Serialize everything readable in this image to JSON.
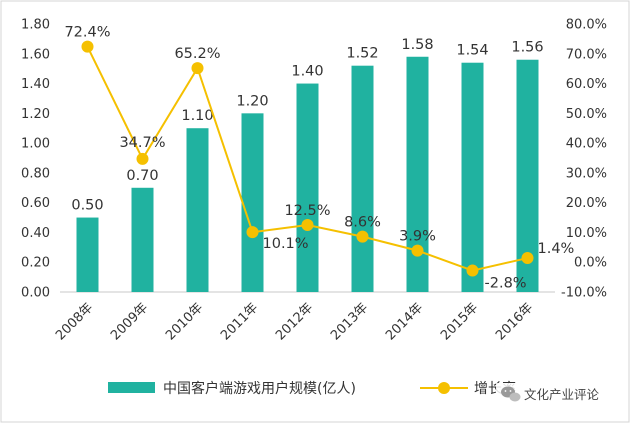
{
  "chart_data": {
    "type": "bar",
    "title": "",
    "xlabel": "",
    "ylabel": "",
    "categories": [
      "2008年",
      "2009年",
      "2010年",
      "2011年",
      "2012年",
      "2013年",
      "2014年",
      "2015年",
      "2016年"
    ],
    "series": [
      {
        "name": "中国客户端游戏用户规模(亿人)",
        "kind": "bar",
        "axis": "left",
        "values": [
          0.5,
          0.7,
          1.1,
          1.2,
          1.4,
          1.52,
          1.58,
          1.54,
          1.56
        ],
        "labels": [
          "0.50",
          "0.70",
          "1.10",
          "1.20",
          "1.40",
          "1.52",
          "1.58",
          "1.54",
          "1.56"
        ],
        "color": "#20b2a0"
      },
      {
        "name": "增长率",
        "kind": "line",
        "axis": "right",
        "values": [
          72.4,
          34.7,
          65.2,
          10.1,
          12.5,
          8.6,
          3.9,
          -2.8,
          1.4
        ],
        "labels": [
          "72.4%",
          "34.7%",
          "65.2%",
          "10.1%",
          "12.5%",
          "8.6%",
          "3.9%",
          "-2.8%",
          "1.4%"
        ],
        "color": "#f5c000"
      }
    ],
    "y_left": {
      "ylim": [
        0,
        1.8
      ],
      "ticks": [
        0,
        0.2,
        0.4,
        0.6,
        0.8,
        1.0,
        1.2,
        1.4,
        1.6,
        1.8
      ],
      "tick_labels": [
        "0.00",
        "0.20",
        "0.40",
        "0.60",
        "0.80",
        "1.00",
        "1.20",
        "1.40",
        "1.60",
        "1.80"
      ]
    },
    "y_right": {
      "ylim": [
        -10,
        80
      ],
      "ticks": [
        -10,
        0,
        10,
        20,
        30,
        40,
        50,
        60,
        70,
        80
      ],
      "tick_labels": [
        "-10.0%",
        "0.0%",
        "10.0%",
        "20.0%",
        "30.0%",
        "40.0%",
        "50.0%",
        "60.0%",
        "70.0%",
        "80.0%"
      ]
    },
    "grid": false,
    "legend_position": "bottom"
  },
  "watermark": {
    "text": "文化产业评论",
    "icon": "wechat-icon"
  }
}
